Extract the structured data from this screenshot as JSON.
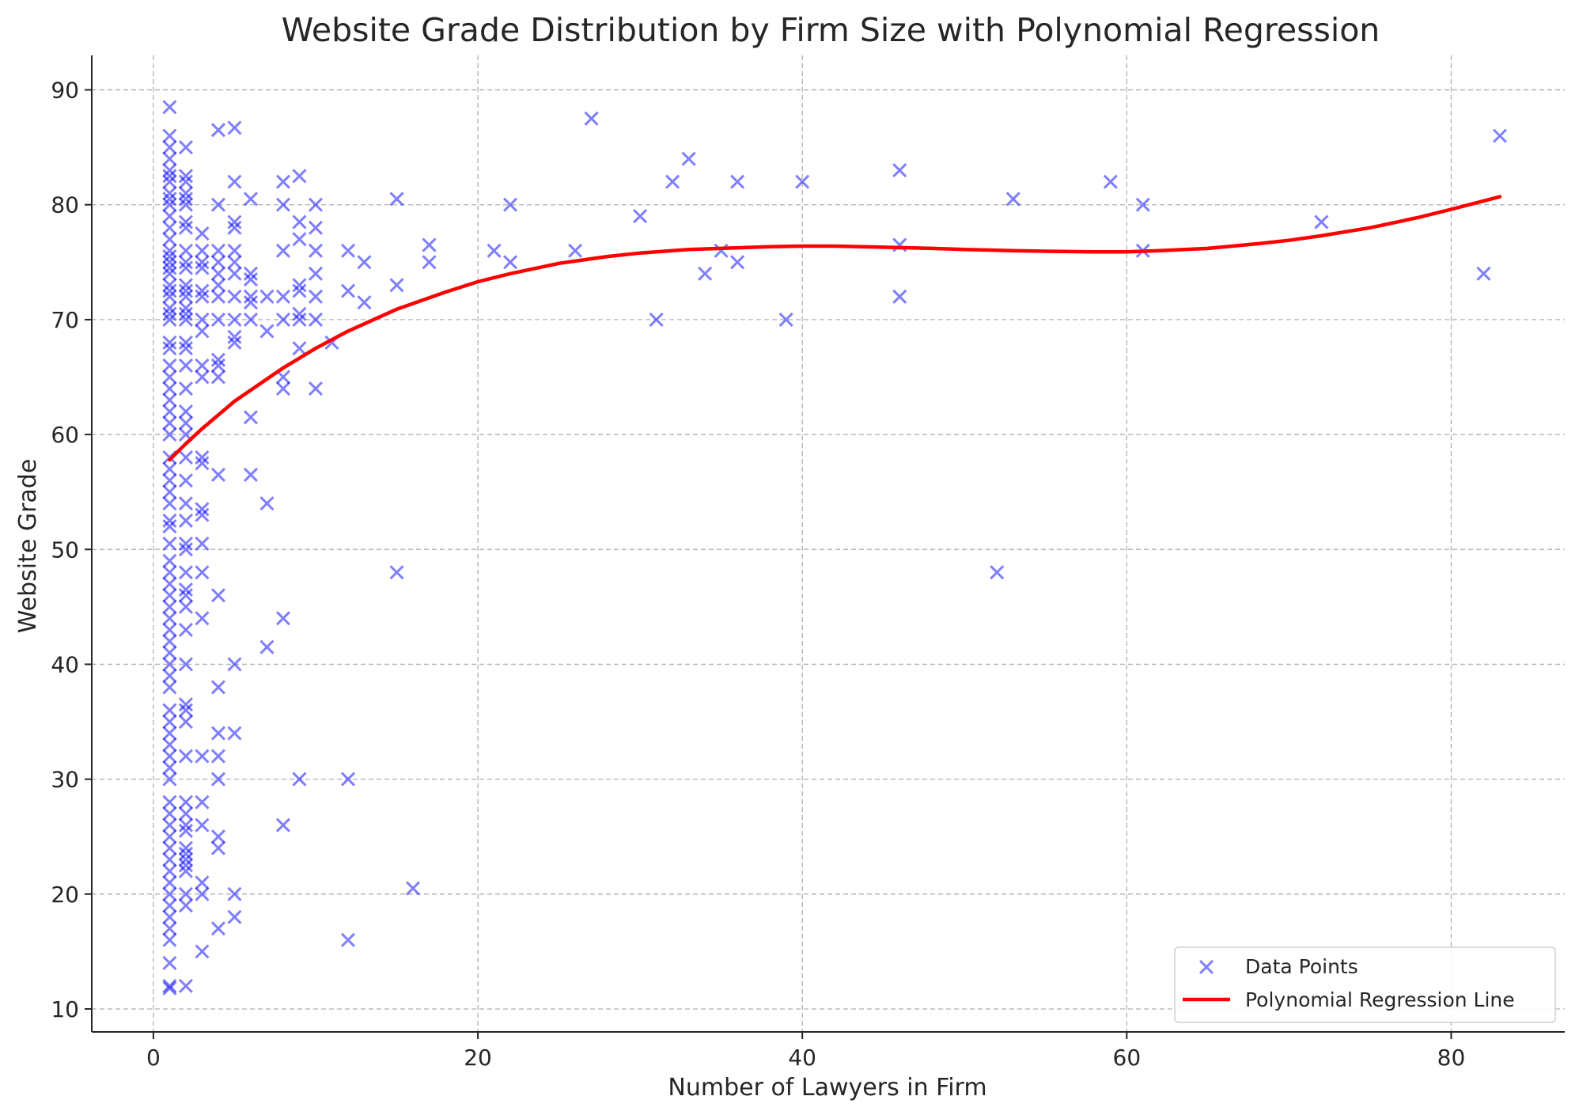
{
  "chart_data": {
    "type": "scatter",
    "title": "Website Grade Distribution by Firm Size with Polynomial Regression",
    "xlabel": "Number of Lawyers in Firm",
    "ylabel": "Website Grade",
    "xlim": [
      -3.8,
      87
    ],
    "ylim": [
      8,
      93
    ],
    "xticks": [
      0,
      20,
      40,
      60,
      80
    ],
    "yticks": [
      10,
      20,
      30,
      40,
      50,
      60,
      70,
      80,
      90
    ],
    "grid": true,
    "legend_position": "bottom-right",
    "colors": {
      "points": "#0000ff",
      "regression": "#ff0000",
      "text": "#262626"
    },
    "series": [
      {
        "name": "Data Points",
        "type": "scatter",
        "marker": "x",
        "points": [
          [
            1,
            88.5
          ],
          [
            1,
            86
          ],
          [
            1,
            85
          ],
          [
            1,
            84
          ],
          [
            1,
            83
          ],
          [
            1,
            82.5
          ],
          [
            1,
            82
          ],
          [
            1,
            81
          ],
          [
            1,
            80.5
          ],
          [
            1,
            80
          ],
          [
            1,
            79
          ],
          [
            1,
            78
          ],
          [
            1,
            77
          ],
          [
            1,
            76
          ],
          [
            1,
            75.5
          ],
          [
            1,
            75
          ],
          [
            1,
            74.5
          ],
          [
            1,
            74
          ],
          [
            1,
            73
          ],
          [
            1,
            72.5
          ],
          [
            1,
            72
          ],
          [
            1,
            71
          ],
          [
            1,
            70.5
          ],
          [
            1,
            70
          ],
          [
            1,
            68
          ],
          [
            1,
            67.5
          ],
          [
            1,
            66
          ],
          [
            1,
            65
          ],
          [
            1,
            64
          ],
          [
            1,
            63
          ],
          [
            1,
            62
          ],
          [
            1,
            61
          ],
          [
            1,
            60
          ],
          [
            1,
            58
          ],
          [
            1,
            57
          ],
          [
            1,
            56
          ],
          [
            1,
            55
          ],
          [
            1,
            54
          ],
          [
            1,
            52.5
          ],
          [
            1,
            52
          ],
          [
            1,
            50.5
          ],
          [
            1,
            49
          ],
          [
            1,
            48
          ],
          [
            1,
            47
          ],
          [
            1,
            46
          ],
          [
            1,
            45
          ],
          [
            1,
            44
          ],
          [
            1,
            43
          ],
          [
            1,
            42
          ],
          [
            1,
            41
          ],
          [
            1,
            40
          ],
          [
            1,
            39
          ],
          [
            1,
            38
          ],
          [
            1,
            36
          ],
          [
            1,
            35
          ],
          [
            1,
            34
          ],
          [
            1,
            33
          ],
          [
            1,
            32
          ],
          [
            1,
            31
          ],
          [
            1,
            30
          ],
          [
            1,
            28
          ],
          [
            1,
            27
          ],
          [
            1,
            26
          ],
          [
            1,
            25
          ],
          [
            1,
            24
          ],
          [
            1,
            23
          ],
          [
            1,
            22
          ],
          [
            1,
            21
          ],
          [
            1,
            20
          ],
          [
            1,
            19
          ],
          [
            1,
            18
          ],
          [
            1,
            17
          ],
          [
            1,
            16
          ],
          [
            1,
            14
          ],
          [
            1,
            12
          ],
          [
            1,
            11.8
          ],
          [
            2,
            85
          ],
          [
            2,
            82.5
          ],
          [
            2,
            82
          ],
          [
            2,
            81
          ],
          [
            2,
            80.5
          ],
          [
            2,
            80
          ],
          [
            2,
            78.5
          ],
          [
            2,
            78
          ],
          [
            2,
            76
          ],
          [
            2,
            75
          ],
          [
            2,
            74.5
          ],
          [
            2,
            73
          ],
          [
            2,
            72.5
          ],
          [
            2,
            72
          ],
          [
            2,
            71
          ],
          [
            2,
            70.5
          ],
          [
            2,
            70
          ],
          [
            2,
            68
          ],
          [
            2,
            67.5
          ],
          [
            2,
            66
          ],
          [
            2,
            64
          ],
          [
            2,
            62
          ],
          [
            2,
            61
          ],
          [
            2,
            60
          ],
          [
            2,
            58
          ],
          [
            2,
            56
          ],
          [
            2,
            54
          ],
          [
            2,
            52.5
          ],
          [
            2,
            50.5
          ],
          [
            2,
            50
          ],
          [
            2,
            48
          ],
          [
            2,
            46.5
          ],
          [
            2,
            46
          ],
          [
            2,
            45
          ],
          [
            2,
            43
          ],
          [
            2,
            40
          ],
          [
            2,
            36.5
          ],
          [
            2,
            36
          ],
          [
            2,
            35
          ],
          [
            2,
            32
          ],
          [
            2,
            28
          ],
          [
            2,
            27
          ],
          [
            2,
            26
          ],
          [
            2,
            25.5
          ],
          [
            2,
            24
          ],
          [
            2,
            23.5
          ],
          [
            2,
            23
          ],
          [
            2,
            22.5
          ],
          [
            2,
            22
          ],
          [
            2,
            20
          ],
          [
            2,
            19
          ],
          [
            2,
            12
          ],
          [
            3,
            77.5
          ],
          [
            3,
            76
          ],
          [
            3,
            75
          ],
          [
            3,
            74.5
          ],
          [
            3,
            72.5
          ],
          [
            3,
            72
          ],
          [
            3,
            70
          ],
          [
            3,
            69
          ],
          [
            3,
            66
          ],
          [
            3,
            65
          ],
          [
            3,
            58
          ],
          [
            3,
            57.5
          ],
          [
            3,
            53.5
          ],
          [
            3,
            53
          ],
          [
            3,
            50.5
          ],
          [
            3,
            48
          ],
          [
            3,
            44
          ],
          [
            3,
            32
          ],
          [
            3,
            28
          ],
          [
            3,
            26
          ],
          [
            3,
            21
          ],
          [
            3,
            20
          ],
          [
            3,
            15
          ],
          [
            4,
            86.5
          ],
          [
            4,
            80
          ],
          [
            4,
            76
          ],
          [
            4,
            75
          ],
          [
            4,
            74
          ],
          [
            4,
            73
          ],
          [
            4,
            72
          ],
          [
            4,
            70
          ],
          [
            4,
            66.5
          ],
          [
            4,
            66
          ],
          [
            4,
            65
          ],
          [
            4,
            56.5
          ],
          [
            4,
            46
          ],
          [
            4,
            38
          ],
          [
            4,
            34
          ],
          [
            4,
            32
          ],
          [
            4,
            30
          ],
          [
            4,
            25
          ],
          [
            4,
            24
          ],
          [
            4,
            17
          ],
          [
            5,
            86.7
          ],
          [
            5,
            82
          ],
          [
            5,
            78.5
          ],
          [
            5,
            78
          ],
          [
            5,
            76
          ],
          [
            5,
            75
          ],
          [
            5,
            74
          ],
          [
            5,
            72
          ],
          [
            5,
            70
          ],
          [
            5,
            68.5
          ],
          [
            5,
            68
          ],
          [
            5,
            40
          ],
          [
            5,
            34
          ],
          [
            5,
            20
          ],
          [
            5,
            18
          ],
          [
            6,
            80.5
          ],
          [
            6,
            74
          ],
          [
            6,
            73.5
          ],
          [
            6,
            72
          ],
          [
            6,
            71.5
          ],
          [
            6,
            70
          ],
          [
            6,
            61.5
          ],
          [
            6,
            56.5
          ],
          [
            7,
            72
          ],
          [
            7,
            69
          ],
          [
            7,
            54
          ],
          [
            7,
            41.5
          ],
          [
            8,
            82
          ],
          [
            8,
            80
          ],
          [
            8,
            76
          ],
          [
            8,
            72
          ],
          [
            8,
            70
          ],
          [
            8,
            65
          ],
          [
            8,
            64
          ],
          [
            8,
            44
          ],
          [
            8,
            26
          ],
          [
            9,
            82.5
          ],
          [
            9,
            78.5
          ],
          [
            9,
            77
          ],
          [
            9,
            73
          ],
          [
            9,
            72.5
          ],
          [
            9,
            70.5
          ],
          [
            9,
            70
          ],
          [
            9,
            67.5
          ],
          [
            9,
            30
          ],
          [
            10,
            80
          ],
          [
            10,
            78
          ],
          [
            10,
            76
          ],
          [
            10,
            74
          ],
          [
            10,
            72
          ],
          [
            10,
            70
          ],
          [
            10,
            64
          ],
          [
            11,
            68
          ],
          [
            12,
            76
          ],
          [
            12,
            72.5
          ],
          [
            12,
            30
          ],
          [
            12,
            16
          ],
          [
            13,
            75
          ],
          [
            13,
            71.5
          ],
          [
            15,
            80.5
          ],
          [
            15,
            73
          ],
          [
            15,
            48
          ],
          [
            16,
            20.5
          ],
          [
            17,
            76.5
          ],
          [
            17,
            75
          ],
          [
            21,
            76
          ],
          [
            22,
            80
          ],
          [
            22,
            75
          ],
          [
            26,
            76
          ],
          [
            27,
            87.5
          ],
          [
            30,
            79
          ],
          [
            31,
            70
          ],
          [
            32,
            82
          ],
          [
            33,
            84
          ],
          [
            34,
            74
          ],
          [
            35,
            76
          ],
          [
            36,
            82
          ],
          [
            36,
            75
          ],
          [
            39,
            70
          ],
          [
            40,
            82
          ],
          [
            46,
            83
          ],
          [
            46,
            76.5
          ],
          [
            46,
            72
          ],
          [
            52,
            48
          ],
          [
            53,
            80.5
          ],
          [
            59,
            82
          ],
          [
            61,
            80
          ],
          [
            61,
            76
          ],
          [
            72,
            78.5
          ],
          [
            82,
            74
          ],
          [
            83,
            86
          ]
        ]
      },
      {
        "name": "Polynomial Regression Line",
        "type": "line",
        "points": [
          [
            1,
            57.8
          ],
          [
            2,
            59.2
          ],
          [
            3,
            60.5
          ],
          [
            5,
            62.9
          ],
          [
            8,
            65.8
          ],
          [
            10,
            67.5
          ],
          [
            12,
            69
          ],
          [
            15,
            70.9
          ],
          [
            18,
            72.4
          ],
          [
            20,
            73.3
          ],
          [
            22,
            74
          ],
          [
            25,
            74.9
          ],
          [
            28,
            75.5
          ],
          [
            30,
            75.8
          ],
          [
            33,
            76.1
          ],
          [
            35,
            76.2
          ],
          [
            38,
            76.35
          ],
          [
            40,
            76.4
          ],
          [
            42,
            76.4
          ],
          [
            45,
            76.3
          ],
          [
            48,
            76.2
          ],
          [
            50,
            76.1
          ],
          [
            53,
            76
          ],
          [
            55,
            75.95
          ],
          [
            58,
            75.9
          ],
          [
            60,
            75.9
          ],
          [
            62,
            76
          ],
          [
            65,
            76.2
          ],
          [
            68,
            76.6
          ],
          [
            70,
            76.9
          ],
          [
            72,
            77.3
          ],
          [
            75,
            78
          ],
          [
            78,
            78.9
          ],
          [
            80,
            79.6
          ],
          [
            83,
            80.7
          ]
        ]
      }
    ]
  }
}
